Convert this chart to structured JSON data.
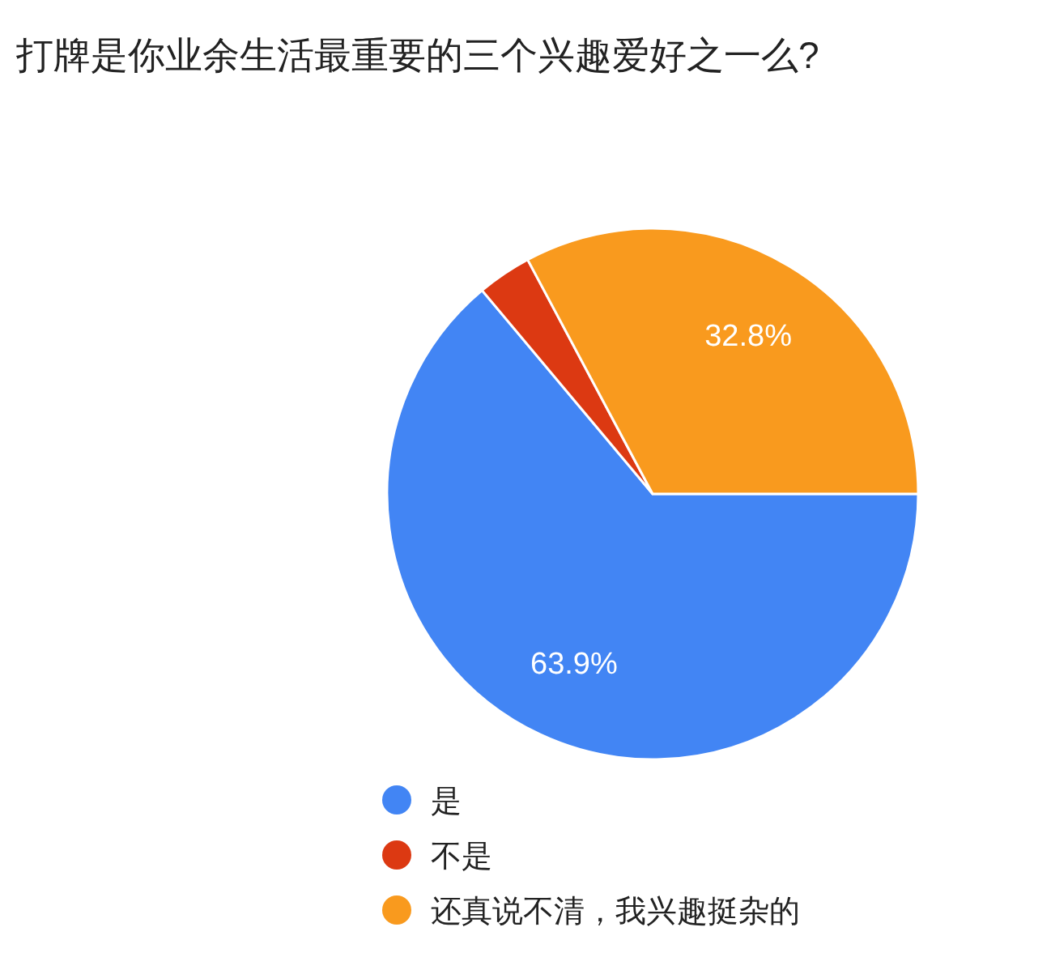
{
  "chart_data": {
    "type": "pie",
    "title": "打牌是你业余生活最重要的三个兴趣爱好之一么?",
    "categories": [
      "是",
      "不是",
      "还真说不清，我兴趣挺杂的"
    ],
    "values": [
      63.9,
      3.3,
      32.8
    ],
    "colors": [
      "#4285f4",
      "#dc3912",
      "#f99a1e"
    ],
    "value_labels": [
      "63.9%",
      null,
      "32.8%"
    ],
    "legend": "bottom"
  }
}
